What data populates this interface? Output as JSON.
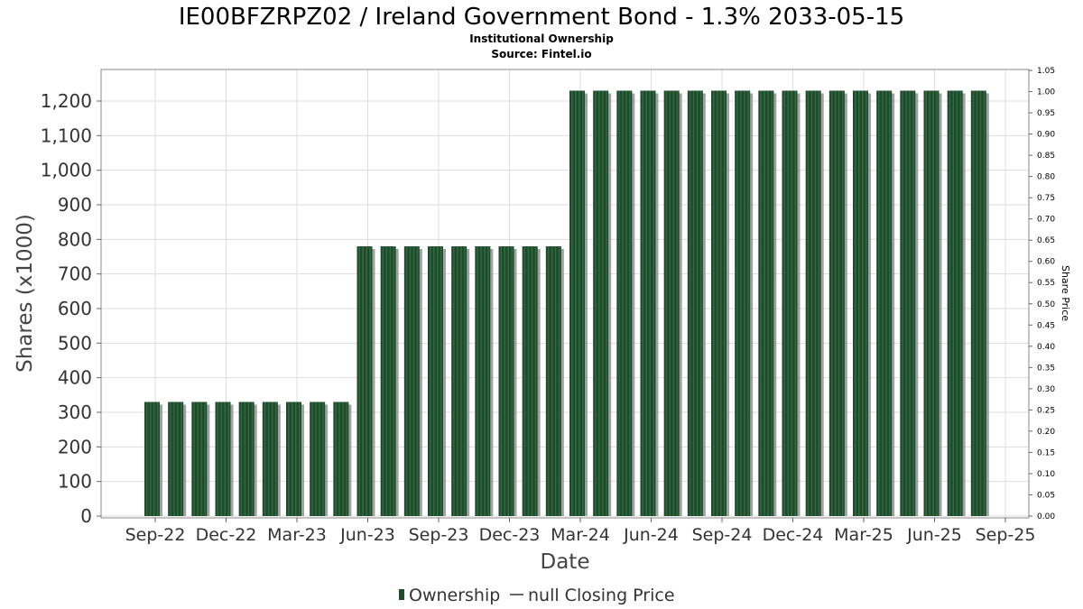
{
  "title": "IE00BFZRPZ02 / Ireland Government Bond - 1.3% 2033-05-15",
  "subtitle": "Institutional Ownership",
  "source": "Source: Fintel.io",
  "colors": {
    "bar": "#1f4a2c",
    "bar_stripe": "#2f6b3f",
    "shadow": "#8a8a8a",
    "grid": "#dddddd",
    "frame": "#888888"
  },
  "chart_data": {
    "type": "bar",
    "xlabel": "Date",
    "ylabel": "Shares (x1000)",
    "y2label": "Share Price",
    "ylim": [
      0,
      1300
    ],
    "y2lim": [
      0,
      1.05
    ],
    "x_tick_labels": [
      "Sep-22",
      "Dec-22",
      "Mar-23",
      "Jun-23",
      "Sep-23",
      "Dec-23",
      "Mar-24",
      "Jun-24",
      "Sep-24",
      "Dec-24",
      "Mar-25",
      "Jun-25",
      "Sep-25"
    ],
    "y_tick_labels": [
      "0",
      "100",
      "200",
      "300",
      "400",
      "500",
      "600",
      "700",
      "800",
      "900",
      "1,000",
      "1,100",
      "1,200"
    ],
    "y2_tick_labels": [
      "0.00",
      "0.05",
      "0.10",
      "0.15",
      "0.20",
      "0.25",
      "0.30",
      "0.35",
      "0.40",
      "0.45",
      "0.50",
      "0.55",
      "0.60",
      "0.65",
      "0.70",
      "0.75",
      "0.80",
      "0.85",
      "0.90",
      "0.95",
      "1.00",
      "1.05"
    ],
    "grid": true,
    "legend_position": "bottom",
    "series": [
      {
        "name": "Ownership",
        "values": [
          330,
          330,
          330,
          330,
          330,
          330,
          330,
          330,
          330,
          780,
          780,
          780,
          780,
          780,
          780,
          780,
          780,
          780,
          1230,
          1230,
          1230,
          1230,
          1230,
          1230,
          1230,
          1230,
          1230,
          1230,
          1230,
          1230,
          1230,
          1230,
          1230,
          1230,
          1230,
          1230
        ]
      },
      {
        "name": "null Closing Price",
        "values": []
      }
    ]
  },
  "legend": {
    "ownership_label": "Ownership",
    "price_label": "null Closing Price"
  }
}
